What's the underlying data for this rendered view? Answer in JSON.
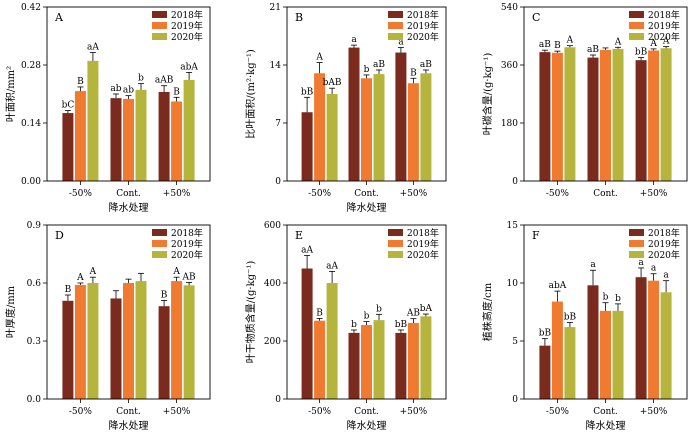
{
  "legend": [
    "2018年",
    "2019年",
    "2020年"
  ],
  "colors": {
    "2018年": "#7b2a1e",
    "2019年": "#f07a30",
    "2020年": "#b5b53e"
  },
  "chart_data": [
    {
      "panel": "A",
      "type": "bar",
      "categories": [
        "-50%",
        "Cont.",
        "+50%"
      ],
      "xlabel": "降水处理",
      "ylabel": "叶面积/mm²",
      "ylim": [
        0,
        0.42
      ],
      "yticks": [
        "0.00",
        "0.14",
        "0.28",
        "0.42"
      ],
      "series": [
        {
          "name": "2018年",
          "values": [
            0.164,
            0.2,
            0.215
          ],
          "err": [
            0.006,
            0.01,
            0.015
          ],
          "labels": [
            "bC",
            "ab",
            "aAB"
          ]
        },
        {
          "name": "2019年",
          "values": [
            0.217,
            0.198,
            0.192
          ],
          "err": [
            0.01,
            0.008,
            0.01
          ],
          "labels": [
            "B",
            "ab",
            "B"
          ]
        },
        {
          "name": "2020年",
          "values": [
            0.29,
            0.22,
            0.244
          ],
          "err": [
            0.02,
            0.015,
            0.018
          ],
          "labels": [
            "aA",
            "b",
            "abA"
          ]
        }
      ]
    },
    {
      "panel": "B",
      "type": "bar",
      "categories": [
        "-50%",
        "Cont.",
        "+50%"
      ],
      "xlabel": "降水处理",
      "ylabel": "比叶面积/(m²·kg⁻¹)",
      "ylim": [
        0,
        21
      ],
      "yticks": [
        "0",
        "7",
        "14",
        "21"
      ],
      "series": [
        {
          "name": "2018年",
          "values": [
            8.3,
            16.1,
            15.5
          ],
          "err": [
            1.8,
            0.3,
            0.6
          ],
          "labels": [
            "bB",
            "a",
            "a"
          ]
        },
        {
          "name": "2019年",
          "values": [
            13.0,
            12.4,
            11.8
          ],
          "err": [
            1.3,
            0.4,
            0.6
          ],
          "labels": [
            "A",
            "b",
            "B"
          ]
        },
        {
          "name": "2020年",
          "values": [
            10.5,
            12.9,
            13.0
          ],
          "err": [
            0.7,
            0.5,
            0.4
          ],
          "labels": [
            "bAB",
            "aB",
            "aB"
          ]
        }
      ]
    },
    {
      "panel": "C",
      "type": "bar",
      "categories": [
        "-50%",
        "Cont.",
        "+50%"
      ],
      "xlabel": "",
      "ylabel": "叶碳含量/(g·kg⁻¹)",
      "ylim": [
        0,
        540
      ],
      "yticks": [
        "0",
        "180",
        "360",
        "540"
      ],
      "series": [
        {
          "name": "2018年",
          "values": [
            400,
            383,
            375
          ],
          "err": [
            6,
            8,
            8
          ],
          "labels": [
            "aB",
            "aB",
            "bB"
          ]
        },
        {
          "name": "2019年",
          "values": [
            398,
            407,
            405
          ],
          "err": [
            5,
            6,
            5
          ],
          "labels": [
            "B",
            "",
            "A"
          ]
        },
        {
          "name": "2020年",
          "values": [
            415,
            410,
            412
          ],
          "err": [
            5,
            5,
            5
          ],
          "labels": [
            "A",
            "A",
            "A"
          ]
        }
      ]
    },
    {
      "panel": "D",
      "type": "bar",
      "categories": [
        "-50%",
        "Cont.",
        "+50%"
      ],
      "xlabel": "降水处理",
      "ylabel": "叶厚度/mm",
      "ylim": [
        0,
        0.9
      ],
      "yticks": [
        "0.0",
        "0.3",
        "0.6",
        "0.9"
      ],
      "series": [
        {
          "name": "2018年",
          "values": [
            0.508,
            0.52,
            0.48
          ],
          "err": [
            0.03,
            0.04,
            0.03
          ],
          "labels": [
            "B",
            "",
            "B"
          ]
        },
        {
          "name": "2019年",
          "values": [
            0.59,
            0.6,
            0.61
          ],
          "err": [
            0.01,
            0.02,
            0.02
          ],
          "labels": [
            "A",
            "",
            "A"
          ]
        },
        {
          "name": "2020年",
          "values": [
            0.6,
            0.61,
            0.588
          ],
          "err": [
            0.03,
            0.04,
            0.015
          ],
          "labels": [
            "A",
            "",
            "AB"
          ]
        }
      ]
    },
    {
      "panel": "E",
      "type": "bar",
      "categories": [
        "-50%",
        "Cont.",
        "+50%"
      ],
      "xlabel": "降水处理",
      "ylabel": "叶干物质含量/(g·kg⁻¹)",
      "ylim": [
        0,
        600
      ],
      "yticks": [
        "0",
        "200",
        "400",
        "600"
      ],
      "series": [
        {
          "name": "2018年",
          "values": [
            450,
            228,
            228
          ],
          "err": [
            45,
            10,
            10
          ],
          "labels": [
            "aA",
            "b",
            "bB"
          ]
        },
        {
          "name": "2019年",
          "values": [
            270,
            255,
            262
          ],
          "err": [
            8,
            12,
            15
          ],
          "labels": [
            "B",
            "b",
            "AB"
          ]
        },
        {
          "name": "2020年",
          "values": [
            400,
            272,
            285
          ],
          "err": [
            40,
            20,
            8
          ],
          "labels": [
            "aA",
            "b",
            "bA"
          ]
        }
      ]
    },
    {
      "panel": "F",
      "type": "bar",
      "categories": [
        "-50%",
        "Cont.",
        "+50%"
      ],
      "xlabel": "降水处理",
      "ylabel": "植株高度/cm",
      "ylim": [
        0,
        15
      ],
      "yticks": [
        "0",
        "5",
        "10",
        "15"
      ],
      "series": [
        {
          "name": "2018年",
          "values": [
            4.6,
            9.8,
            10.5
          ],
          "err": [
            0.6,
            1.3,
            0.8
          ],
          "labels": [
            "bB",
            "a",
            "a"
          ]
        },
        {
          "name": "2019年",
          "values": [
            8.4,
            7.6,
            10.2
          ],
          "err": [
            0.9,
            0.7,
            0.6
          ],
          "labels": [
            "abA",
            "b",
            "a"
          ]
        },
        {
          "name": "2020年",
          "values": [
            6.2,
            7.6,
            9.2
          ],
          "err": [
            0.4,
            0.6,
            1.0
          ],
          "labels": [
            "bB",
            "b",
            "a"
          ]
        }
      ]
    }
  ]
}
